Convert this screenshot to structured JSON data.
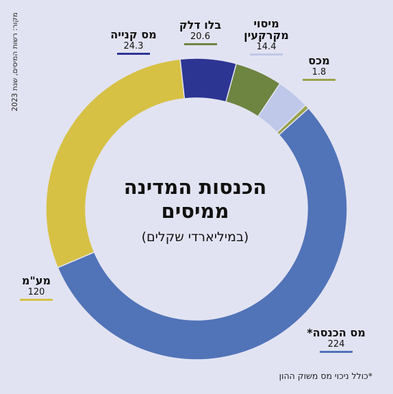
{
  "chart_data": {
    "type": "donut",
    "title": "הכנסות המדינה ממיסים",
    "subtitle": "(במיליארדי שקלים)",
    "source": "מקור: רשות המיסים, שנת 2023",
    "footnote": "*כולל ניכוי מס משוק ההון",
    "slices": [
      {
        "label": "מס הכנסה*",
        "value": 224,
        "value_text": "224",
        "color": "#5173b8"
      },
      {
        "label": "מע\"מ",
        "value": 120,
        "value_text": "120",
        "color": "#d6c145"
      },
      {
        "label": "מס קנייה",
        "value": 24.3,
        "value_text": "24.3",
        "color": "#2d3593"
      },
      {
        "label": "בלו דלק",
        "value": 20.6,
        "value_text": "20.6",
        "color": "#6e8441"
      },
      {
        "label": "מיסוי מקרקעין",
        "value": 14.4,
        "value_text": "14.4",
        "color": "#bfc8e8"
      },
      {
        "label": "מכס",
        "value": 1.8,
        "value_text": "1.8",
        "color": "#9aa24a"
      }
    ]
  }
}
